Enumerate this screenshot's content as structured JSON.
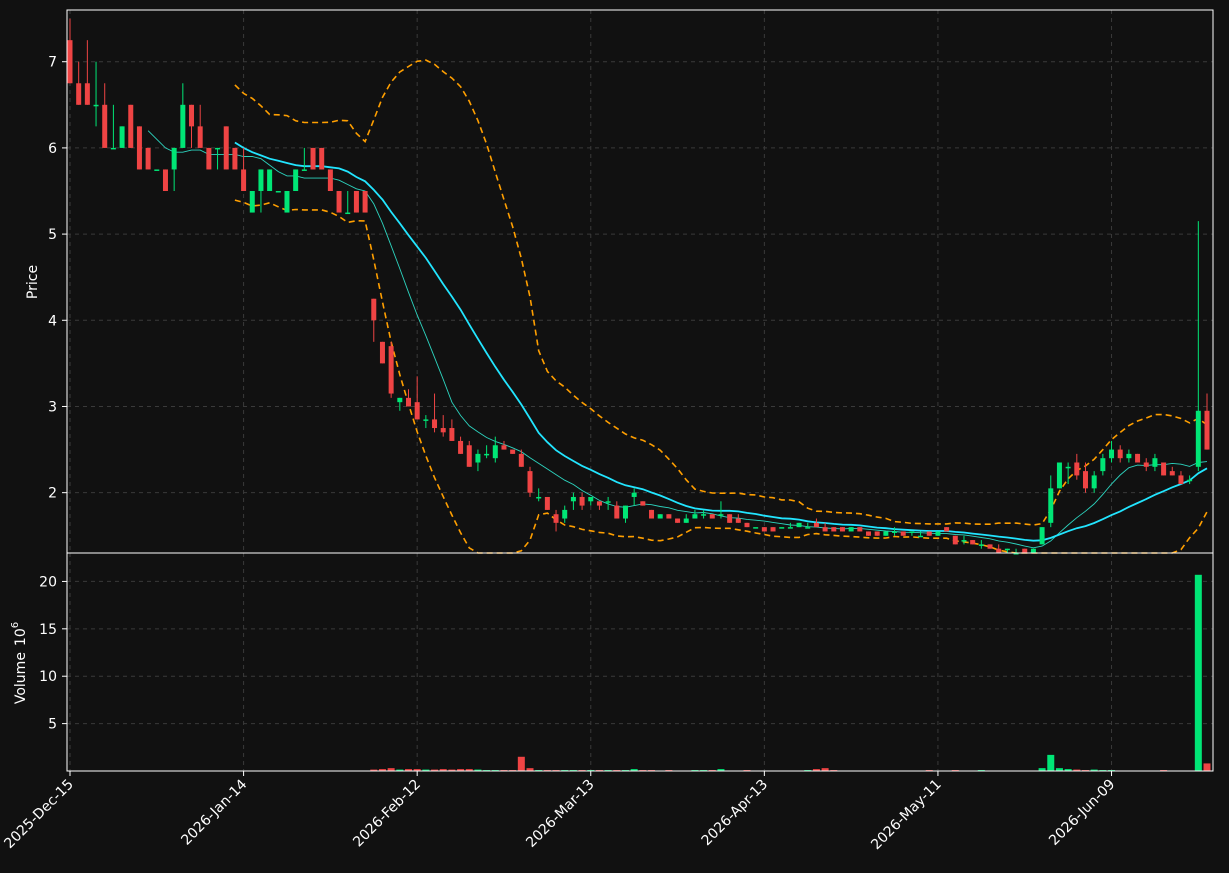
{
  "colors": {
    "background": "#111111",
    "up": "#00e676",
    "down": "#ef4444",
    "ma_fast": "#2dd4bf",
    "ma_slow": "#22e5ff",
    "bollinger": "#ff9f00",
    "axis": "#ffffff"
  },
  "chart_data": {
    "type": "candlestick",
    "grid": true,
    "x_tick_labels": [
      "2025-Dec-15",
      "2026-Jan-14",
      "2026-Feb-12",
      "2026-Mar-13",
      "2026-Apr-13",
      "2026-May-11",
      "2026-Jun-09"
    ],
    "price_panel": {
      "ylabel": "Price",
      "ylim": [
        1.3,
        7.6
      ],
      "yticks": [
        2,
        3,
        4,
        5,
        6,
        7
      ]
    },
    "volume_panel": {
      "ylabel": "Volume",
      "ylabel_exponent": "6",
      "ylim": [
        0,
        23
      ],
      "yticks": [
        5,
        10,
        15,
        20
      ]
    },
    "candles": [
      [
        7.25,
        7.5,
        6.75,
        6.75,
        0.05
      ],
      [
        6.75,
        7.0,
        6.5,
        6.5,
        0.05
      ],
      [
        6.75,
        7.25,
        6.5,
        6.5,
        0.04
      ],
      [
        6.5,
        7.0,
        6.25,
        6.5,
        0.03
      ],
      [
        6.5,
        6.75,
        6.0,
        6.0,
        0.04
      ],
      [
        6.0,
        6.5,
        6.0,
        6.0,
        0.03
      ],
      [
        6.0,
        6.25,
        6.0,
        6.25,
        0.03
      ],
      [
        6.5,
        6.5,
        6.0,
        6.0,
        0.03
      ],
      [
        6.25,
        6.25,
        5.75,
        5.75,
        0.03
      ],
      [
        6.0,
        6.0,
        5.75,
        5.75,
        0.03
      ],
      [
        5.75,
        5.75,
        5.75,
        5.75,
        0.02
      ],
      [
        5.75,
        5.75,
        5.5,
        5.5,
        0.03
      ],
      [
        5.75,
        6.0,
        5.5,
        6.0,
        0.03
      ],
      [
        6.0,
        6.75,
        6.0,
        6.5,
        0.04
      ],
      [
        6.5,
        6.5,
        6.0,
        6.25,
        0.03
      ],
      [
        6.25,
        6.5,
        6.0,
        6.0,
        0.03
      ],
      [
        6.0,
        6.0,
        5.75,
        5.75,
        0.03
      ],
      [
        6.0,
        6.0,
        5.75,
        6.0,
        0.02
      ],
      [
        6.25,
        6.25,
        5.75,
        5.75,
        0.03
      ],
      [
        6.0,
        6.0,
        5.75,
        5.75,
        0.03
      ],
      [
        5.75,
        6.0,
        5.5,
        5.5,
        0.03
      ],
      [
        5.25,
        5.5,
        5.25,
        5.5,
        0.03
      ],
      [
        5.5,
        5.75,
        5.25,
        5.75,
        0.03
      ],
      [
        5.5,
        5.75,
        5.5,
        5.75,
        0.02
      ],
      [
        5.5,
        5.5,
        5.5,
        5.5,
        0.02
      ],
      [
        5.25,
        5.5,
        5.25,
        5.5,
        0.03
      ],
      [
        5.5,
        5.75,
        5.5,
        5.75,
        0.03
      ],
      [
        5.75,
        6.0,
        5.75,
        5.75,
        0.02
      ],
      [
        6.0,
        6.0,
        5.75,
        5.75,
        0.02
      ],
      [
        6.0,
        6.0,
        5.75,
        5.75,
        0.03
      ],
      [
        5.75,
        5.75,
        5.5,
        5.5,
        0.03
      ],
      [
        5.5,
        5.5,
        5.25,
        5.25,
        0.03
      ],
      [
        5.25,
        5.5,
        5.25,
        5.25,
        0.02
      ],
      [
        5.5,
        5.5,
        5.25,
        5.25,
        0.03
      ],
      [
        5.5,
        5.5,
        5.25,
        5.25,
        0.03
      ],
      [
        4.25,
        4.25,
        3.75,
        4.0,
        0.15
      ],
      [
        3.75,
        3.75,
        3.5,
        3.5,
        0.2
      ],
      [
        3.7,
        3.75,
        3.1,
        3.15,
        0.3
      ],
      [
        3.05,
        3.1,
        2.95,
        3.1,
        0.15
      ],
      [
        3.1,
        3.2,
        3.0,
        3.0,
        0.2
      ],
      [
        3.05,
        3.35,
        2.9,
        2.85,
        0.2
      ],
      [
        2.85,
        2.9,
        2.75,
        2.85,
        0.15
      ],
      [
        2.85,
        3.15,
        2.7,
        2.75,
        0.15
      ],
      [
        2.75,
        2.9,
        2.65,
        2.7,
        0.2
      ],
      [
        2.75,
        2.85,
        2.6,
        2.6,
        0.15
      ],
      [
        2.6,
        2.65,
        2.45,
        2.45,
        0.2
      ],
      [
        2.55,
        2.6,
        2.3,
        2.3,
        0.2
      ],
      [
        2.35,
        2.5,
        2.25,
        2.45,
        0.15
      ],
      [
        2.45,
        2.55,
        2.4,
        2.45,
        0.1
      ],
      [
        2.4,
        2.65,
        2.35,
        2.55,
        0.1
      ],
      [
        2.55,
        2.6,
        2.5,
        2.5,
        0.1
      ],
      [
        2.5,
        2.5,
        2.45,
        2.45,
        0.1
      ],
      [
        2.45,
        2.5,
        2.3,
        2.3,
        1.5
      ],
      [
        2.25,
        2.3,
        1.95,
        2.0,
        0.3
      ],
      [
        1.95,
        2.05,
        1.9,
        1.95,
        0.1
      ],
      [
        1.95,
        1.95,
        1.8,
        1.8,
        0.1
      ],
      [
        1.75,
        1.8,
        1.55,
        1.65,
        0.1
      ],
      [
        1.7,
        1.85,
        1.65,
        1.8,
        0.1
      ],
      [
        1.9,
        2.0,
        1.8,
        1.95,
        0.1
      ],
      [
        1.95,
        2.0,
        1.8,
        1.85,
        0.1
      ],
      [
        1.9,
        1.95,
        1.85,
        1.95,
        0.1
      ],
      [
        1.9,
        1.9,
        1.8,
        1.85,
        0.1
      ],
      [
        1.9,
        1.95,
        1.8,
        1.9,
        0.1
      ],
      [
        1.85,
        1.9,
        1.7,
        1.7,
        0.1
      ],
      [
        1.7,
        1.85,
        1.65,
        1.85,
        0.1
      ],
      [
        1.95,
        2.05,
        1.85,
        2.0,
        0.2
      ],
      [
        1.9,
        1.9,
        1.85,
        1.85,
        0.1
      ],
      [
        1.8,
        1.8,
        1.7,
        1.7,
        0.1
      ],
      [
        1.7,
        1.75,
        1.7,
        1.75,
        0.05
      ],
      [
        1.75,
        1.75,
        1.7,
        1.7,
        0.1
      ],
      [
        1.7,
        1.7,
        1.65,
        1.65,
        0.05
      ],
      [
        1.65,
        1.75,
        1.65,
        1.7,
        0.05
      ],
      [
        1.7,
        1.8,
        1.7,
        1.75,
        0.1
      ],
      [
        1.75,
        1.8,
        1.7,
        1.75,
        0.1
      ],
      [
        1.75,
        1.75,
        1.7,
        1.7,
        0.1
      ],
      [
        1.75,
        1.9,
        1.7,
        1.75,
        0.2
      ],
      [
        1.75,
        1.75,
        1.65,
        1.65,
        0.05
      ],
      [
        1.7,
        1.75,
        1.65,
        1.65,
        0.05
      ],
      [
        1.65,
        1.65,
        1.6,
        1.6,
        0.1
      ],
      [
        1.6,
        1.6,
        1.6,
        1.6,
        0.05
      ],
      [
        1.6,
        1.6,
        1.55,
        1.55,
        0.05
      ],
      [
        1.6,
        1.6,
        1.55,
        1.55,
        0.05
      ],
      [
        1.6,
        1.6,
        1.6,
        1.6,
        0.05
      ],
      [
        1.6,
        1.65,
        1.6,
        1.6,
        0.05
      ],
      [
        1.6,
        1.65,
        1.6,
        1.65,
        0.05
      ],
      [
        1.6,
        1.65,
        1.6,
        1.6,
        0.1
      ],
      [
        1.65,
        1.7,
        1.6,
        1.6,
        0.2
      ],
      [
        1.6,
        1.65,
        1.55,
        1.55,
        0.3
      ],
      [
        1.6,
        1.6,
        1.55,
        1.55,
        0.1
      ],
      [
        1.6,
        1.6,
        1.55,
        1.55,
        0.05
      ],
      [
        1.55,
        1.6,
        1.55,
        1.6,
        0.05
      ],
      [
        1.6,
        1.6,
        1.55,
        1.55,
        0.05
      ],
      [
        1.55,
        1.55,
        1.5,
        1.5,
        0.05
      ],
      [
        1.55,
        1.55,
        1.5,
        1.5,
        0.05
      ],
      [
        1.5,
        1.55,
        1.5,
        1.55,
        0.05
      ],
      [
        1.55,
        1.6,
        1.5,
        1.55,
        0.05
      ],
      [
        1.55,
        1.55,
        1.5,
        1.5,
        0.05
      ],
      [
        1.55,
        1.55,
        1.5,
        1.55,
        0.05
      ],
      [
        1.5,
        1.55,
        1.5,
        1.5,
        0.05
      ],
      [
        1.55,
        1.55,
        1.5,
        1.5,
        0.1
      ],
      [
        1.5,
        1.55,
        1.5,
        1.55,
        0.05
      ],
      [
        1.6,
        1.6,
        1.55,
        1.55,
        0.05
      ],
      [
        1.5,
        1.5,
        1.4,
        1.4,
        0.1
      ],
      [
        1.45,
        1.5,
        1.4,
        1.45,
        0.05
      ],
      [
        1.45,
        1.45,
        1.4,
        1.4,
        0.05
      ],
      [
        1.4,
        1.45,
        1.35,
        1.4,
        0.1
      ],
      [
        1.4,
        1.4,
        1.35,
        1.35,
        0.05
      ],
      [
        1.35,
        1.4,
        1.3,
        1.3,
        0.05
      ],
      [
        1.35,
        1.35,
        1.3,
        1.35,
        0.05
      ],
      [
        1.3,
        1.35,
        1.3,
        1.3,
        0.05
      ],
      [
        1.35,
        1.35,
        1.3,
        1.3,
        0.05
      ],
      [
        1.3,
        1.35,
        1.3,
        1.35,
        0.05
      ],
      [
        1.4,
        1.6,
        1.4,
        1.6,
        0.3
      ],
      [
        1.65,
        2.2,
        1.6,
        2.05,
        1.7
      ],
      [
        2.05,
        2.35,
        2.05,
        2.35,
        0.3
      ],
      [
        2.3,
        2.35,
        2.1,
        2.3,
        0.2
      ],
      [
        2.35,
        2.45,
        2.15,
        2.2,
        0.15
      ],
      [
        2.25,
        2.35,
        2.0,
        2.05,
        0.1
      ],
      [
        2.05,
        2.25,
        2.0,
        2.2,
        0.15
      ],
      [
        2.25,
        2.45,
        2.2,
        2.4,
        0.1
      ],
      [
        2.4,
        2.6,
        2.35,
        2.5,
        0.1
      ],
      [
        2.5,
        2.55,
        2.35,
        2.4,
        0.05
      ],
      [
        2.4,
        2.5,
        2.35,
        2.45,
        0.05
      ],
      [
        2.45,
        2.45,
        2.35,
        2.35,
        0.05
      ],
      [
        2.35,
        2.4,
        2.25,
        2.3,
        0.05
      ],
      [
        2.3,
        2.45,
        2.25,
        2.4,
        0.05
      ],
      [
        2.35,
        2.35,
        2.2,
        2.2,
        0.1
      ],
      [
        2.25,
        2.3,
        2.2,
        2.2,
        0.05
      ],
      [
        2.2,
        2.25,
        2.1,
        2.1,
        0.05
      ],
      [
        2.15,
        2.2,
        2.1,
        2.15,
        0.05
      ],
      [
        2.3,
        5.15,
        2.25,
        2.95,
        20.7
      ],
      [
        2.95,
        3.15,
        2.5,
        2.5,
        0.8
      ]
    ],
    "x_tick_indices": [
      0,
      20,
      40,
      60,
      80,
      100,
      120
    ]
  }
}
